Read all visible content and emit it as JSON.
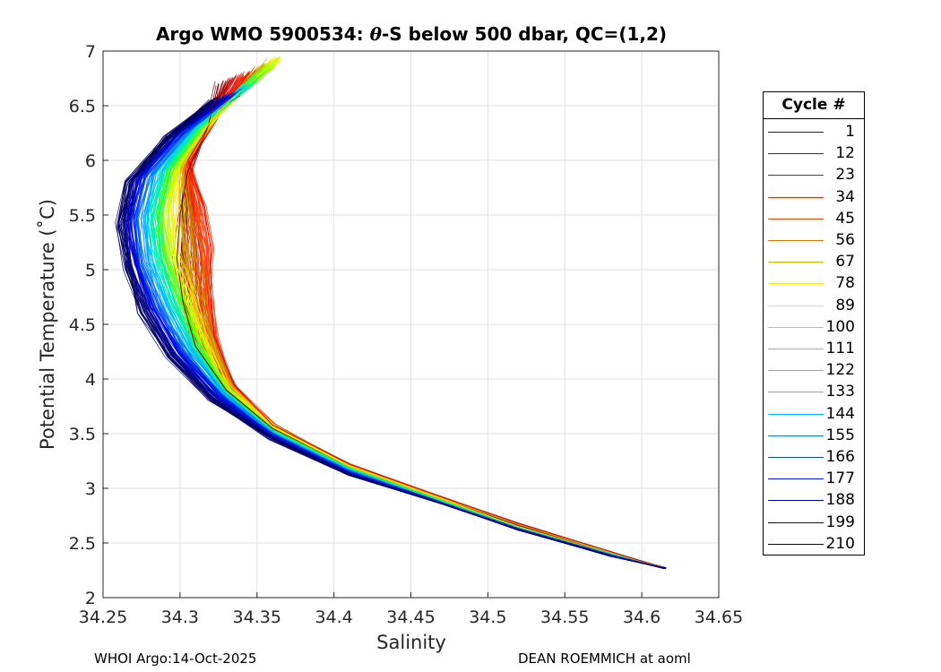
{
  "title": {
    "prefix": "Argo WMO 5900534: ",
    "theta": "θ",
    "suffix": "-S below 500 dbar,  QC=(1,2)"
  },
  "footer": {
    "left": "WHOI Argo:14-Oct-2025",
    "right": "DEAN ROEMMICH at aoml"
  },
  "legend": {
    "title": "Cycle #",
    "items": [
      {
        "label": "1",
        "color": "#800000"
      },
      {
        "label": "12",
        "color": "#b40000"
      },
      {
        "label": "23",
        "color": "#e60000"
      },
      {
        "label": "34",
        "color": "#ff2000"
      },
      {
        "label": "45",
        "color": "#ff3c00"
      },
      {
        "label": "56",
        "color": "#cc7a00"
      },
      {
        "label": "67",
        "color": "#d4b000"
      },
      {
        "label": "78",
        "color": "#ffe600"
      },
      {
        "label": "89",
        "color": "#c8ff00"
      },
      {
        "label": "100",
        "color": "#7cff00"
      },
      {
        "label": "111",
        "color": "#2eff3a"
      },
      {
        "label": "122",
        "color": "#00f58a"
      },
      {
        "label": "133",
        "color": "#00e6c8"
      },
      {
        "label": "144",
        "color": "#00b4ff"
      },
      {
        "label": "155",
        "color": "#0078ff"
      },
      {
        "label": "166",
        "color": "#0040ff"
      },
      {
        "label": "177",
        "color": "#0010e0"
      },
      {
        "label": "188",
        "color": "#0000b0"
      },
      {
        "label": "199",
        "color": "#000090"
      },
      {
        "label": "210",
        "color": "#00005a"
      }
    ]
  },
  "chart_data": {
    "type": "line",
    "title": "Argo WMO 5900534: θ-S below 500 dbar,  QC=(1,2)",
    "xlabel": "Salinity",
    "ylabel": "Potential Temperature (˚C)",
    "xlim": [
      34.25,
      34.65
    ],
    "ylim": [
      2,
      7
    ],
    "xticks": [
      "34.25",
      "34.3",
      "34.35",
      "34.4",
      "34.45",
      "34.5",
      "34.55",
      "34.6",
      "34.65"
    ],
    "yticks": [
      "2",
      "2.5",
      "3",
      "3.5",
      "4",
      "4.5",
      "5",
      "5.5",
      "6",
      "6.5",
      "7"
    ],
    "grid": true,
    "legend_placement": "outside-right",
    "representative_series": [
      {
        "name": "1",
        "x": [
          34.615,
          34.58,
          34.52,
          34.47,
          34.41,
          34.36,
          34.33,
          34.31,
          34.302,
          34.298,
          34.3,
          34.305,
          34.318,
          34.325
        ],
        "y": [
          2.27,
          2.4,
          2.66,
          2.9,
          3.2,
          3.55,
          3.9,
          4.3,
          4.7,
          5.1,
          5.5,
          5.9,
          6.3,
          6.7
        ]
      },
      {
        "name": "23",
        "x": [
          34.615,
          34.58,
          34.52,
          34.47,
          34.41,
          34.36,
          34.335,
          34.322,
          34.32,
          34.32,
          34.315,
          34.305,
          34.322,
          34.345
        ],
        "y": [
          2.27,
          2.42,
          2.68,
          2.92,
          3.22,
          3.58,
          3.95,
          4.4,
          4.8,
          5.2,
          5.6,
          6.0,
          6.4,
          6.8
        ]
      },
      {
        "name": "89",
        "x": [
          34.615,
          34.58,
          34.52,
          34.47,
          34.41,
          34.36,
          34.33,
          34.315,
          34.305,
          34.295,
          34.292,
          34.298,
          34.325,
          34.365
        ],
        "y": [
          2.27,
          2.4,
          2.65,
          2.9,
          3.2,
          3.56,
          3.92,
          4.35,
          4.75,
          5.15,
          5.55,
          5.95,
          6.45,
          6.95
        ]
      },
      {
        "name": "133",
        "x": [
          34.615,
          34.58,
          34.52,
          34.47,
          34.41,
          34.36,
          34.328,
          34.308,
          34.295,
          34.285,
          34.282,
          34.29,
          34.31,
          34.345
        ],
        "y": [
          2.27,
          2.4,
          2.64,
          2.88,
          3.18,
          3.52,
          3.9,
          4.3,
          4.7,
          5.1,
          5.5,
          5.9,
          6.3,
          6.7
        ]
      },
      {
        "name": "177",
        "x": [
          34.615,
          34.58,
          34.52,
          34.47,
          34.41,
          34.36,
          34.325,
          34.3,
          34.283,
          34.272,
          34.268,
          34.275,
          34.3,
          34.335
        ],
        "y": [
          2.27,
          2.39,
          2.63,
          2.87,
          3.15,
          3.48,
          3.85,
          4.25,
          4.65,
          5.05,
          5.45,
          5.85,
          6.25,
          6.6
        ]
      },
      {
        "name": "210",
        "x": [
          34.615,
          34.58,
          34.52,
          34.47,
          34.41,
          34.36,
          34.32,
          34.292,
          34.275,
          34.265,
          34.26,
          34.265,
          34.29,
          34.32
        ],
        "y": [
          2.27,
          2.38,
          2.62,
          2.86,
          3.12,
          3.45,
          3.8,
          4.2,
          4.6,
          5.0,
          5.4,
          5.8,
          6.2,
          6.55
        ]
      }
    ]
  }
}
